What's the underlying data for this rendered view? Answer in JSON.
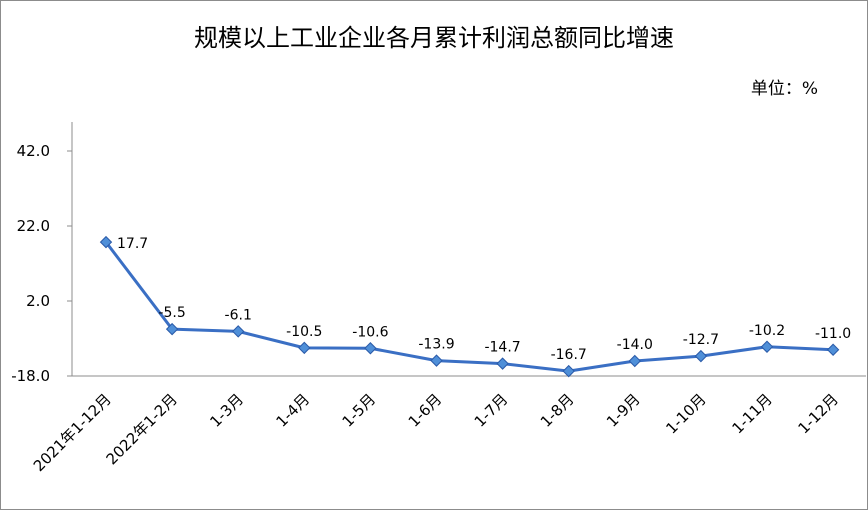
{
  "chart_data": {
    "type": "line",
    "title": "规模以上工业企业各月累计利润总额同比增速",
    "unit_label": "单位：%",
    "categories": [
      "2021年1-12月",
      "2022年1-2月",
      "1-3月",
      "1-4月",
      "1-5月",
      "1-6月",
      "1-7月",
      "1-8月",
      "1-9月",
      "1-10月",
      "1-11月",
      "1-12月"
    ],
    "values": [
      17.7,
      -5.5,
      -6.1,
      -10.5,
      -10.6,
      -13.9,
      -14.7,
      -16.7,
      -14.0,
      -12.7,
      -10.2,
      -11.0
    ],
    "data_labels": [
      "17.7",
      "-5.5",
      "-6.1",
      "-10.5",
      "-10.6",
      "-13.9",
      "-14.7",
      "-16.7",
      "-14.0",
      "-12.7",
      "-10.2",
      "-11.0"
    ],
    "y_ticks": [
      "42.0",
      "22.0",
      "2.0",
      "-18.0"
    ],
    "ylim": [
      -18,
      42
    ],
    "grid": false,
    "colors": {
      "line": "#3a6fc4",
      "marker_fill": "#4f8fd8",
      "marker_stroke": "#2a5aa8"
    }
  }
}
